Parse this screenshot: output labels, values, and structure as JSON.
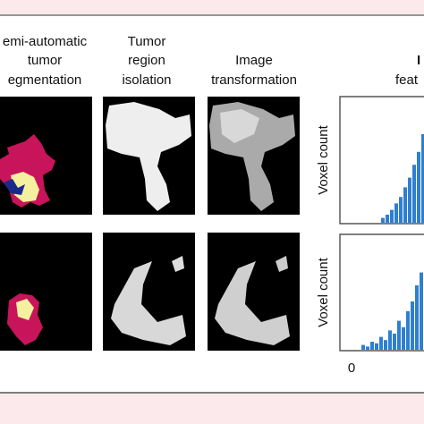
{
  "columns": [
    {
      "lines": [
        "emi-automatic",
        "tumor",
        "egmentation"
      ]
    },
    {
      "lines": [
        "Tumor",
        "region",
        "isolation"
      ]
    },
    {
      "lines": [
        "Image",
        "transformation"
      ]
    }
  ],
  "right_header": {
    "lines": [
      "I",
      "feat"
    ]
  },
  "histograms": [
    {
      "y_label": "Voxel count",
      "counts": [
        3,
        5,
        8,
        12,
        16,
        22,
        28,
        36,
        44,
        55
      ]
    },
    {
      "y_label": "Voxel count",
      "counts": [
        3,
        2,
        5,
        4,
        8,
        6,
        12,
        10,
        18,
        14,
        24,
        30,
        40,
        48
      ],
      "x_tick": "0"
    }
  ]
}
